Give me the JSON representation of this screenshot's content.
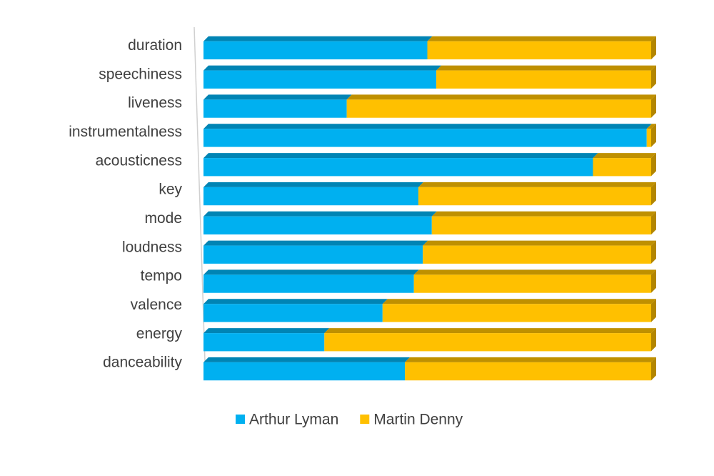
{
  "chart_data": {
    "type": "bar",
    "orientation": "horizontal",
    "stacked": true,
    "categories": [
      "duration",
      "speechiness",
      "liveness",
      "instrumentalness",
      "acousticness",
      "key",
      "mode",
      "loudness",
      "tempo",
      "valence",
      "energy",
      "danceability"
    ],
    "series": [
      {
        "name": "Arthur Lyman",
        "color": "#00b0f0",
        "values": [
          50,
          52,
          32,
          99,
          87,
          48,
          51,
          49,
          47,
          40,
          27,
          45
        ]
      },
      {
        "name": "Martin Denny",
        "color": "#ffc000",
        "values": [
          50,
          48,
          68,
          1,
          13,
          52,
          49,
          51,
          53,
          60,
          73,
          55
        ]
      }
    ],
    "xlim": [
      0,
      100
    ],
    "legend": "bottom"
  }
}
